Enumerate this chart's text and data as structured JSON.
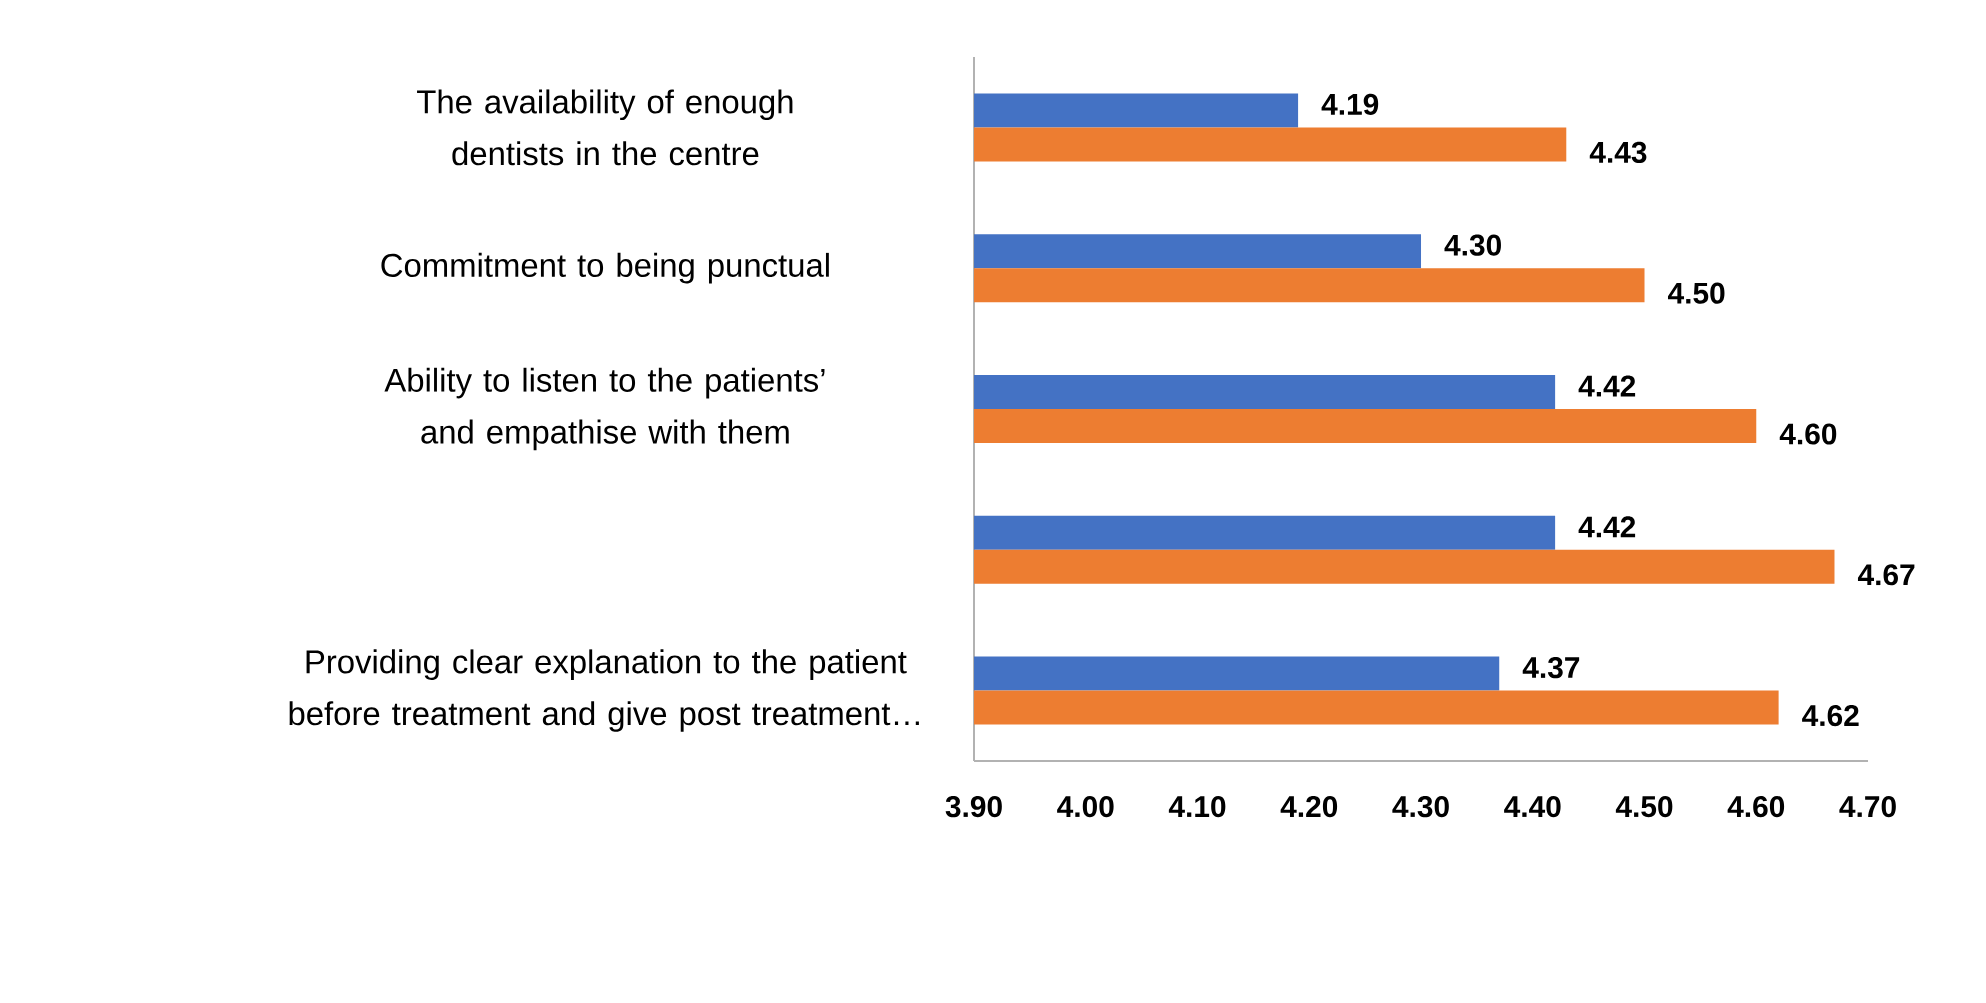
{
  "chart_data": {
    "type": "bar",
    "orientation": "horizontal",
    "categories": [
      "The availability of enough dentists in the centre",
      "Commitment to being punctual",
      "Ability to listen to the patients’ and empathise with them",
      null,
      "Providing clear explanation to the patient before treatment and give post treatment…"
    ],
    "series": [
      {
        "color": "#4472c4",
        "values": [
          4.19,
          4.3,
          4.42,
          4.42,
          4.37
        ],
        "value_labels": [
          "4.19",
          "4.30",
          "4.42",
          "4.42",
          "4.37"
        ]
      },
      {
        "color": "#ed7d31",
        "values": [
          4.43,
          4.5,
          4.6,
          4.67,
          4.62
        ],
        "value_labels": [
          "4.43",
          "4.50",
          "4.60",
          "4.67",
          "4.62"
        ]
      }
    ],
    "xlim": [
      3.9,
      4.7
    ],
    "xticks": [
      {
        "value": 3.9,
        "label": "3.90"
      },
      {
        "value": 4.0,
        "label": "4.00"
      },
      {
        "value": 4.1,
        "label": "4.10"
      },
      {
        "value": 4.2,
        "label": "4.20"
      },
      {
        "value": 4.3,
        "label": "4.30"
      },
      {
        "value": 4.4,
        "label": "4.40"
      },
      {
        "value": 4.5,
        "label": "4.50"
      },
      {
        "value": 4.6,
        "label": "4.60"
      },
      {
        "value": 4.7,
        "label": "4.70"
      }
    ],
    "grid": false
  }
}
